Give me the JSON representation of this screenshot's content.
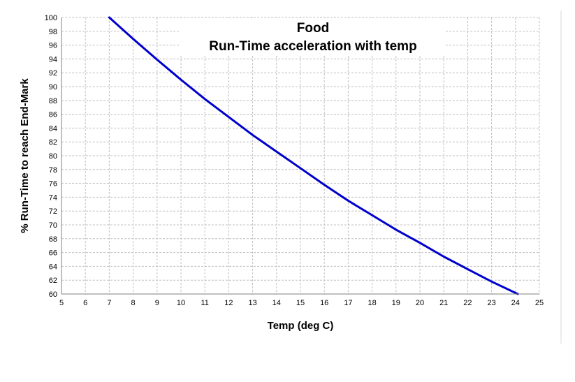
{
  "chart_data": {
    "type": "line",
    "title": "Food",
    "subtitle": "Run-Time acceleration with temp",
    "xlabel": "Temp (deg C)",
    "ylabel": "% Run-Time to reach End-Mark",
    "xlim": [
      5,
      25
    ],
    "ylim": [
      60,
      100
    ],
    "x_ticks": [
      5,
      6,
      7,
      8,
      9,
      10,
      11,
      12,
      13,
      14,
      15,
      16,
      17,
      18,
      19,
      20,
      21,
      22,
      23,
      24,
      25
    ],
    "y_ticks": [
      60,
      62,
      64,
      66,
      68,
      70,
      72,
      74,
      76,
      78,
      80,
      82,
      84,
      86,
      88,
      90,
      92,
      94,
      96,
      98,
      100
    ],
    "grid": true,
    "line_color": "#0000cc",
    "series": [
      {
        "name": "",
        "x": [
          7,
          8,
          9,
          10,
          11,
          12,
          13,
          14,
          15,
          16,
          17,
          18,
          19,
          20,
          21,
          22,
          23,
          24.1
        ],
        "y": [
          100,
          96.9,
          93.9,
          91.0,
          88.2,
          85.6,
          83.0,
          80.6,
          78.2,
          75.8,
          73.5,
          71.4,
          69.3,
          67.4,
          65.4,
          63.6,
          61.8,
          60
        ]
      }
    ]
  }
}
